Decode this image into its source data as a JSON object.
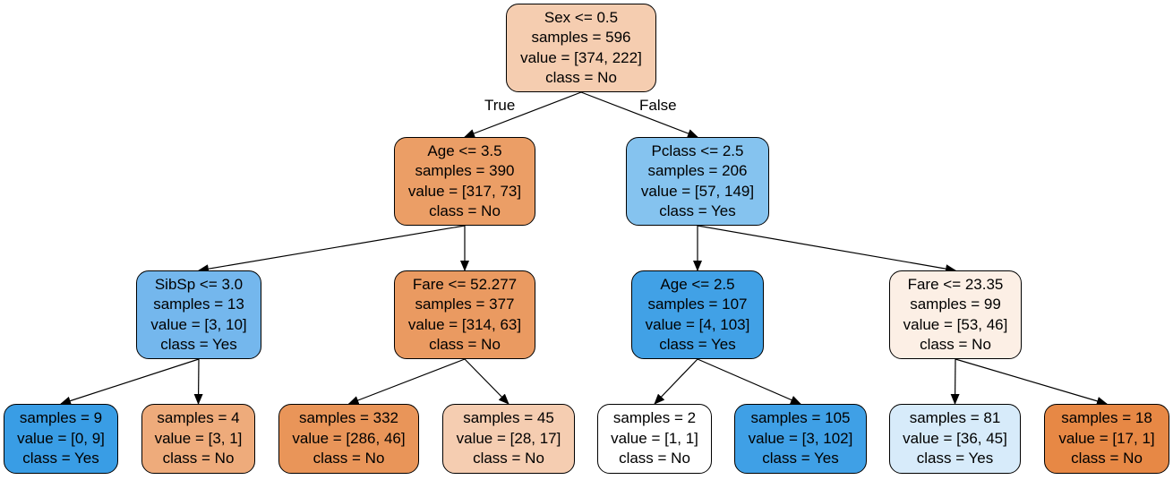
{
  "edge_labels": {
    "true_label": "True",
    "false_label": "False"
  },
  "nodes": [
    {
      "id": "root",
      "lines": [
        "Sex <= 0.5",
        "samples = 596",
        "value = [374, 222]",
        "class = No"
      ],
      "fill": "#f5cdb0"
    },
    {
      "id": "n1",
      "lines": [
        "Age <= 3.5",
        "samples = 390",
        "value = [317, 73]",
        "class = No"
      ],
      "fill": "#eb9e66"
    },
    {
      "id": "n2",
      "lines": [
        "Pclass <= 2.5",
        "samples = 206",
        "value = [57, 149]",
        "class = Yes"
      ],
      "fill": "#85c3ef"
    },
    {
      "id": "n3",
      "lines": [
        "SibSp <= 3.0",
        "samples = 13",
        "value = [3, 10]",
        "class = Yes"
      ],
      "fill": "#74b7ed"
    },
    {
      "id": "n4",
      "lines": [
        "Fare <= 52.277",
        "samples = 377",
        "value = [314, 63]",
        "class = No"
      ],
      "fill": "#ea9a61"
    },
    {
      "id": "n5",
      "lines": [
        "Age <= 2.5",
        "samples = 107",
        "value = [4, 103]",
        "class = Yes"
      ],
      "fill": "#41a1e6"
    },
    {
      "id": "n6",
      "lines": [
        "Fare <= 23.35",
        "samples = 99",
        "value = [53, 46]",
        "class = No"
      ],
      "fill": "#fcefe5"
    },
    {
      "id": "l1",
      "lines": [
        "samples = 9",
        "value = [0, 9]",
        "class = Yes"
      ],
      "fill": "#399de5"
    },
    {
      "id": "l2",
      "lines": [
        "samples = 4",
        "value = [3, 1]",
        "class = No"
      ],
      "fill": "#eeab7b"
    },
    {
      "id": "l3",
      "lines": [
        "samples = 332",
        "value = [286, 46]",
        "class = No"
      ],
      "fill": "#e99559"
    },
    {
      "id": "l4",
      "lines": [
        "samples = 45",
        "value = [28, 17]",
        "class = No"
      ],
      "fill": "#f5cdb1"
    },
    {
      "id": "l5",
      "lines": [
        "samples = 2",
        "value = [1, 1]",
        "class = No"
      ],
      "fill": "#ffffff"
    },
    {
      "id": "l6",
      "lines": [
        "samples = 105",
        "value = [3, 102]",
        "class = Yes"
      ],
      "fill": "#3fa0e6"
    },
    {
      "id": "l7",
      "lines": [
        "samples = 81",
        "value = [36, 45]",
        "class = Yes"
      ],
      "fill": "#d7ebfa"
    },
    {
      "id": "l8",
      "lines": [
        "samples = 18",
        "value = [17, 1]",
        "class = No"
      ],
      "fill": "#e78845"
    }
  ],
  "edges": [
    {
      "from": "root",
      "to": "n1",
      "label": "true_label"
    },
    {
      "from": "root",
      "to": "n2",
      "label": "false_label"
    },
    {
      "from": "n1",
      "to": "n3"
    },
    {
      "from": "n1",
      "to": "n4"
    },
    {
      "from": "n2",
      "to": "n5"
    },
    {
      "from": "n2",
      "to": "n6"
    },
    {
      "from": "n3",
      "to": "l1"
    },
    {
      "from": "n3",
      "to": "l2"
    },
    {
      "from": "n4",
      "to": "l3"
    },
    {
      "from": "n4",
      "to": "l4"
    },
    {
      "from": "n5",
      "to": "l5"
    },
    {
      "from": "n5",
      "to": "l6"
    },
    {
      "from": "n6",
      "to": "l7"
    },
    {
      "from": "n6",
      "to": "l8"
    }
  ]
}
